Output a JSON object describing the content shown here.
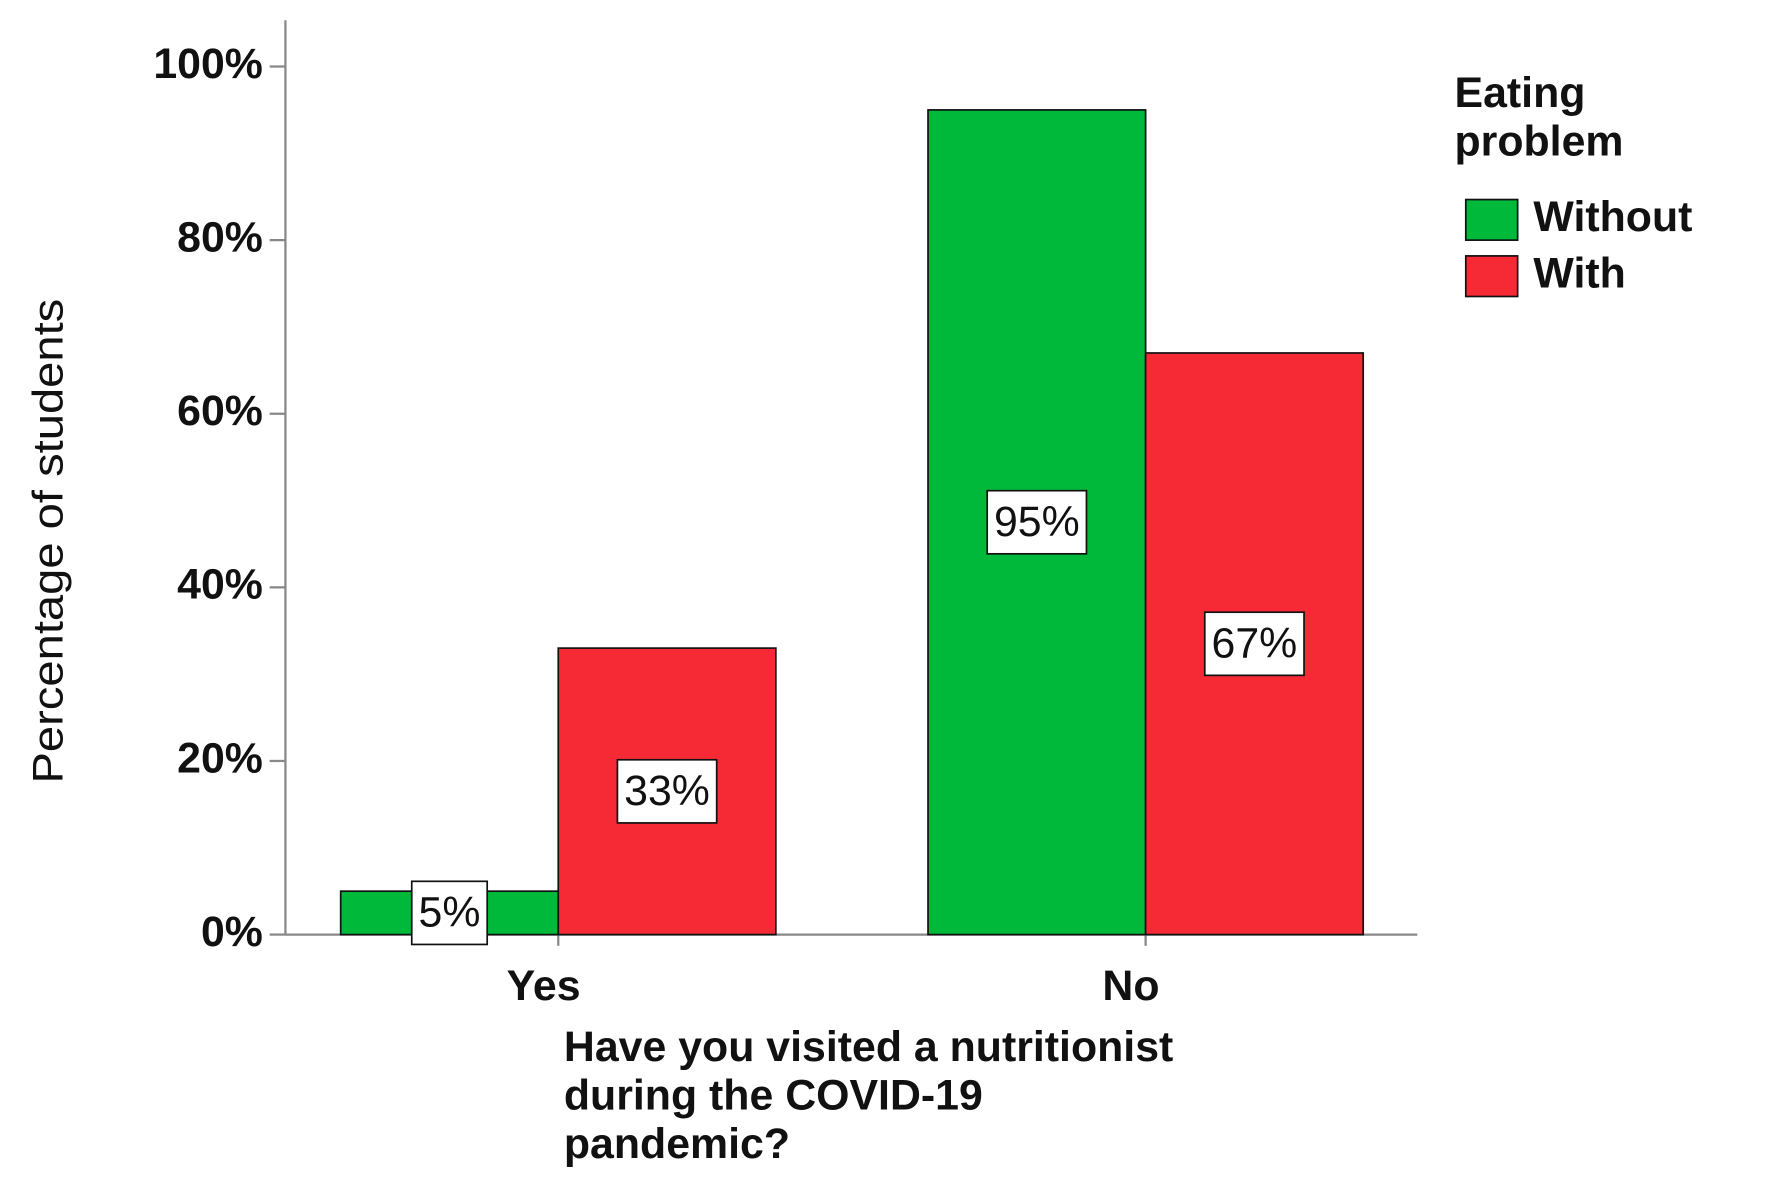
{
  "chart_data": {
    "type": "bar",
    "x_label": "Have you visited a nutritionist during the COVID-19 pandemic?",
    "y_label": "Percentage of students",
    "legend_title": "Eating problem",
    "legend_position": "right",
    "categories": [
      "Yes",
      "No"
    ],
    "series": [
      {
        "name": "Without",
        "color": "#00b83a",
        "values": [
          5,
          95
        ],
        "value_labels": [
          "5%",
          "95%"
        ]
      },
      {
        "name": "With",
        "color": "#f52a35",
        "values": [
          33,
          67
        ],
        "value_labels": [
          "33%",
          "67%"
        ]
      }
    ],
    "ylim": [
      0,
      100
    ],
    "yticks": [
      {
        "value": 0,
        "label": "0%"
      },
      {
        "value": 20,
        "label": "20%"
      },
      {
        "value": 40,
        "label": "40%"
      },
      {
        "value": 60,
        "label": "60%"
      },
      {
        "value": 80,
        "label": "80%"
      },
      {
        "value": 100,
        "label": "100%"
      }
    ]
  }
}
